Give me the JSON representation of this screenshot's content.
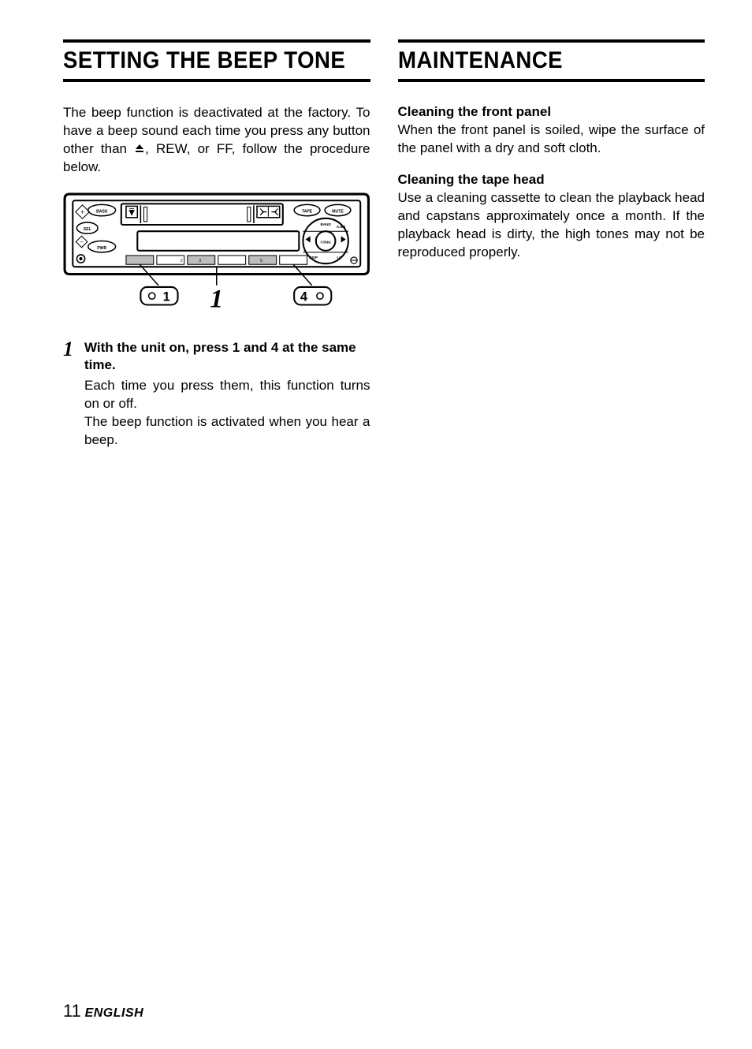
{
  "left": {
    "title": "SETTING THE BEEP TONE",
    "intro_before_icon": "The beep function is deactivated at the factory. To have a beep sound each time you press any button other than ",
    "intro_after_icon": ", REW, or FF, follow the procedure below.",
    "diagram": {
      "button1_label": "○1",
      "button4_label": "4○",
      "step_indicator": "1",
      "labels": {
        "bass": "BASS",
        "sel": "SEL",
        "pwr": "PWR",
        "tape": "TAPE",
        "mute": "MUTE",
        "band": "BAND",
        "ams": "A.MS",
        "csng": "CSNG",
        "disp": "DISP",
        "lo": "LO"
      }
    },
    "step": {
      "number": "1",
      "title": "With the unit on, press 1 and 4 at the same time.",
      "body": "Each time you press them, this function turns on or off.\nThe beep function is activated when you hear a beep."
    }
  },
  "right": {
    "title": "MAINTENANCE",
    "sections": [
      {
        "title": "Cleaning the front panel",
        "body": "When the front panel is soiled, wipe the surface of the panel with a dry and soft cloth."
      },
      {
        "title": "Cleaning the tape head",
        "body": "Use a cleaning cassette to clean the playback head and capstans approximately once a month. If the playback head is dirty, the high tones may not be reproduced properly."
      }
    ]
  },
  "footer": {
    "page": "11",
    "lang": "ENGLISH"
  },
  "colors": {
    "text": "#000000",
    "background": "#ffffff",
    "border": "#000000"
  },
  "fonts": {
    "title_size": 30,
    "body_size": 17,
    "step_number_size": 26
  }
}
